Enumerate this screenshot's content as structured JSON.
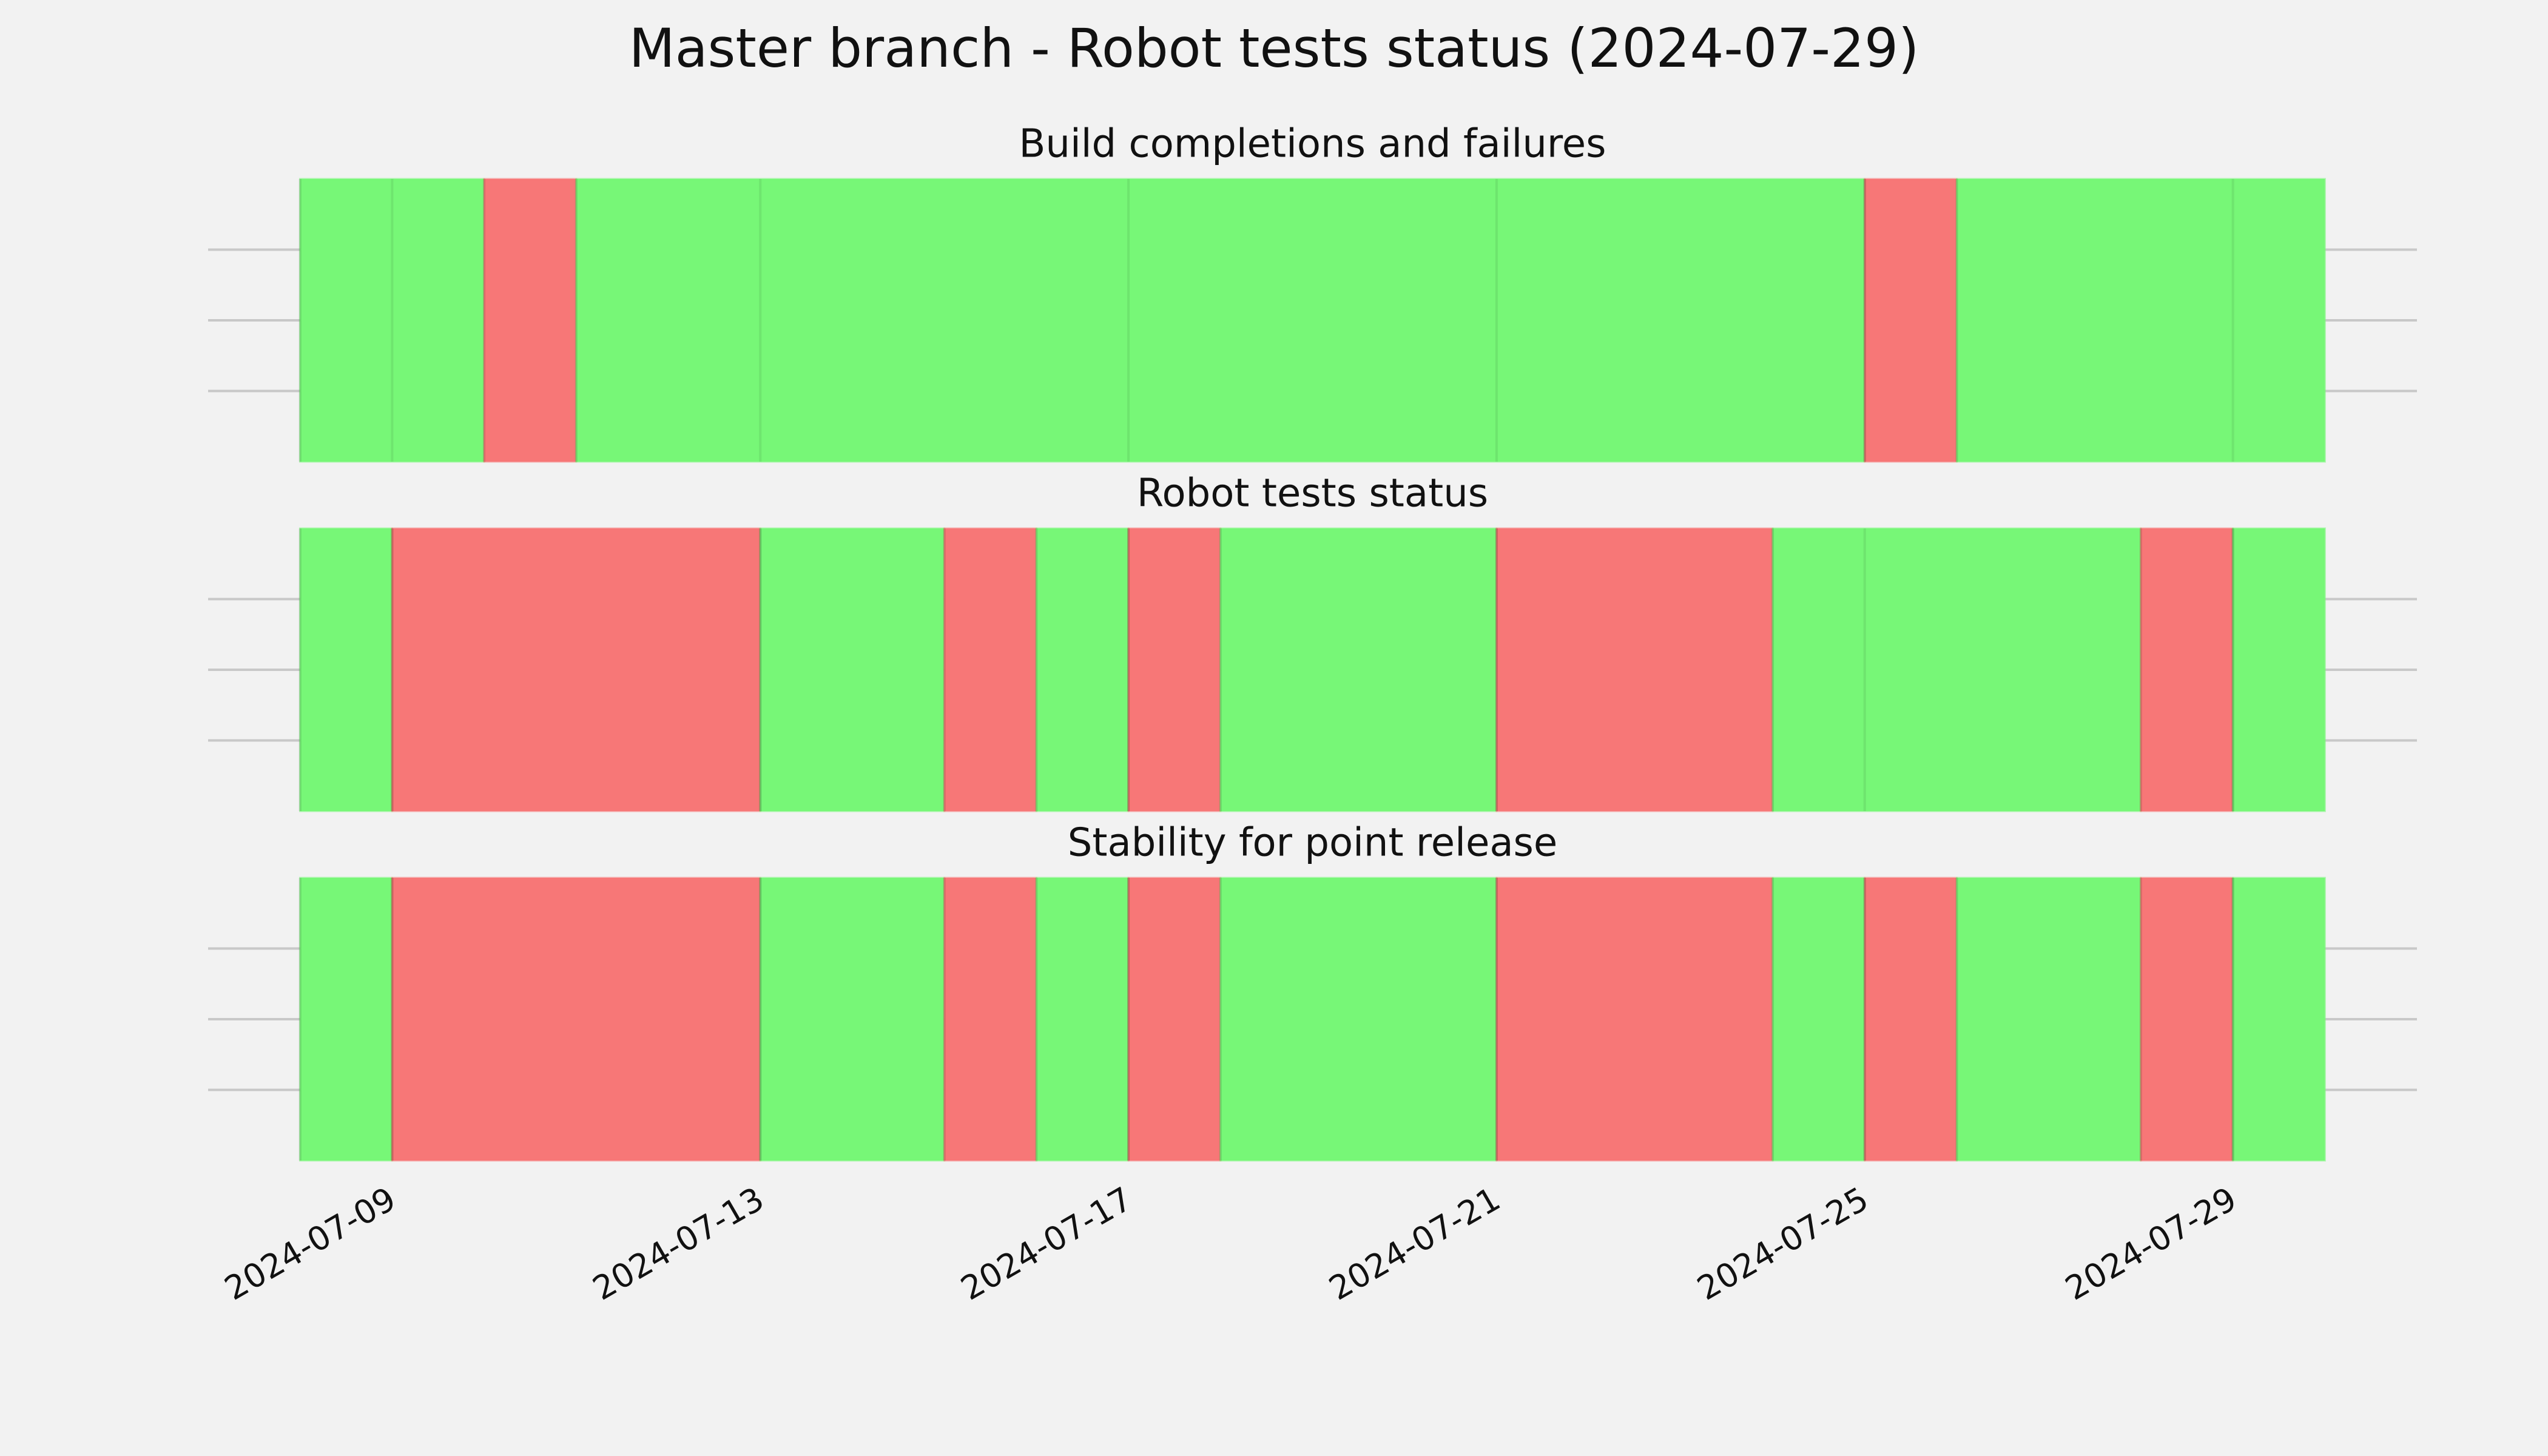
{
  "title": "Master branch - Robot tests status (2024-07-29)",
  "chart_data": [
    {
      "type": "timeline",
      "title": "Build completions and failures",
      "xlim": [
        "2024-07-07",
        "2024-07-31"
      ],
      "ylim": [
        0,
        1
      ],
      "yticks": [
        0.25,
        0.5,
        0.75
      ],
      "xticks": [
        "2024-07-09",
        "2024-07-13",
        "2024-07-17",
        "2024-07-21",
        "2024-07-25",
        "2024-07-29"
      ],
      "grid": true,
      "spans": [
        {
          "start": "2024-07-08",
          "end": "2024-07-10",
          "color": "#77f777"
        },
        {
          "start": "2024-07-10",
          "end": "2024-07-11",
          "color": "#f77777"
        },
        {
          "start": "2024-07-11",
          "end": "2024-07-25",
          "color": "#77f777"
        },
        {
          "start": "2024-07-25",
          "end": "2024-07-26",
          "color": "#f77777"
        },
        {
          "start": "2024-07-26",
          "end": "2024-07-30",
          "color": "#77f777"
        }
      ]
    },
    {
      "type": "timeline",
      "title": "Robot tests status",
      "xlim": [
        "2024-07-07",
        "2024-07-31"
      ],
      "ylim": [
        0,
        1
      ],
      "yticks": [
        0.25,
        0.5,
        0.75
      ],
      "xticks": [
        "2024-07-09",
        "2024-07-13",
        "2024-07-17",
        "2024-07-21",
        "2024-07-25",
        "2024-07-29"
      ],
      "grid": true,
      "spans": [
        {
          "start": "2024-07-08",
          "end": "2024-07-09",
          "color": "#77f777"
        },
        {
          "start": "2024-07-09",
          "end": "2024-07-13",
          "color": "#f77777"
        },
        {
          "start": "2024-07-13",
          "end": "2024-07-15",
          "color": "#77f777"
        },
        {
          "start": "2024-07-15",
          "end": "2024-07-16",
          "color": "#f77777"
        },
        {
          "start": "2024-07-16",
          "end": "2024-07-17",
          "color": "#77f777"
        },
        {
          "start": "2024-07-17",
          "end": "2024-07-18",
          "color": "#f77777"
        },
        {
          "start": "2024-07-18",
          "end": "2024-07-21",
          "color": "#77f777"
        },
        {
          "start": "2024-07-21",
          "end": "2024-07-24",
          "color": "#f77777"
        },
        {
          "start": "2024-07-24",
          "end": "2024-07-28",
          "color": "#77f777"
        },
        {
          "start": "2024-07-28",
          "end": "2024-07-29",
          "color": "#f77777"
        },
        {
          "start": "2024-07-29",
          "end": "2024-07-30",
          "color": "#77f777"
        }
      ]
    },
    {
      "type": "timeline",
      "title": "Stability for point release",
      "xlim": [
        "2024-07-07",
        "2024-07-31"
      ],
      "ylim": [
        0,
        1
      ],
      "yticks": [
        0.25,
        0.5,
        0.75
      ],
      "xticks": [
        "2024-07-09",
        "2024-07-13",
        "2024-07-17",
        "2024-07-21",
        "2024-07-25",
        "2024-07-29"
      ],
      "grid": true,
      "spans": [
        {
          "start": "2024-07-08",
          "end": "2024-07-09",
          "color": "#77f777"
        },
        {
          "start": "2024-07-09",
          "end": "2024-07-13",
          "color": "#f77777"
        },
        {
          "start": "2024-07-13",
          "end": "2024-07-15",
          "color": "#77f777"
        },
        {
          "start": "2024-07-15",
          "end": "2024-07-16",
          "color": "#f77777"
        },
        {
          "start": "2024-07-16",
          "end": "2024-07-17",
          "color": "#77f777"
        },
        {
          "start": "2024-07-17",
          "end": "2024-07-18",
          "color": "#f77777"
        },
        {
          "start": "2024-07-18",
          "end": "2024-07-21",
          "color": "#77f777"
        },
        {
          "start": "2024-07-21",
          "end": "2024-07-24",
          "color": "#f77777"
        },
        {
          "start": "2024-07-24",
          "end": "2024-07-25",
          "color": "#77f777"
        },
        {
          "start": "2024-07-25",
          "end": "2024-07-26",
          "color": "#f77777"
        },
        {
          "start": "2024-07-26",
          "end": "2024-07-28",
          "color": "#77f777"
        },
        {
          "start": "2024-07-28",
          "end": "2024-07-29",
          "color": "#f77777"
        },
        {
          "start": "2024-07-29",
          "end": "2024-07-30",
          "color": "#77f777"
        }
      ]
    }
  ]
}
